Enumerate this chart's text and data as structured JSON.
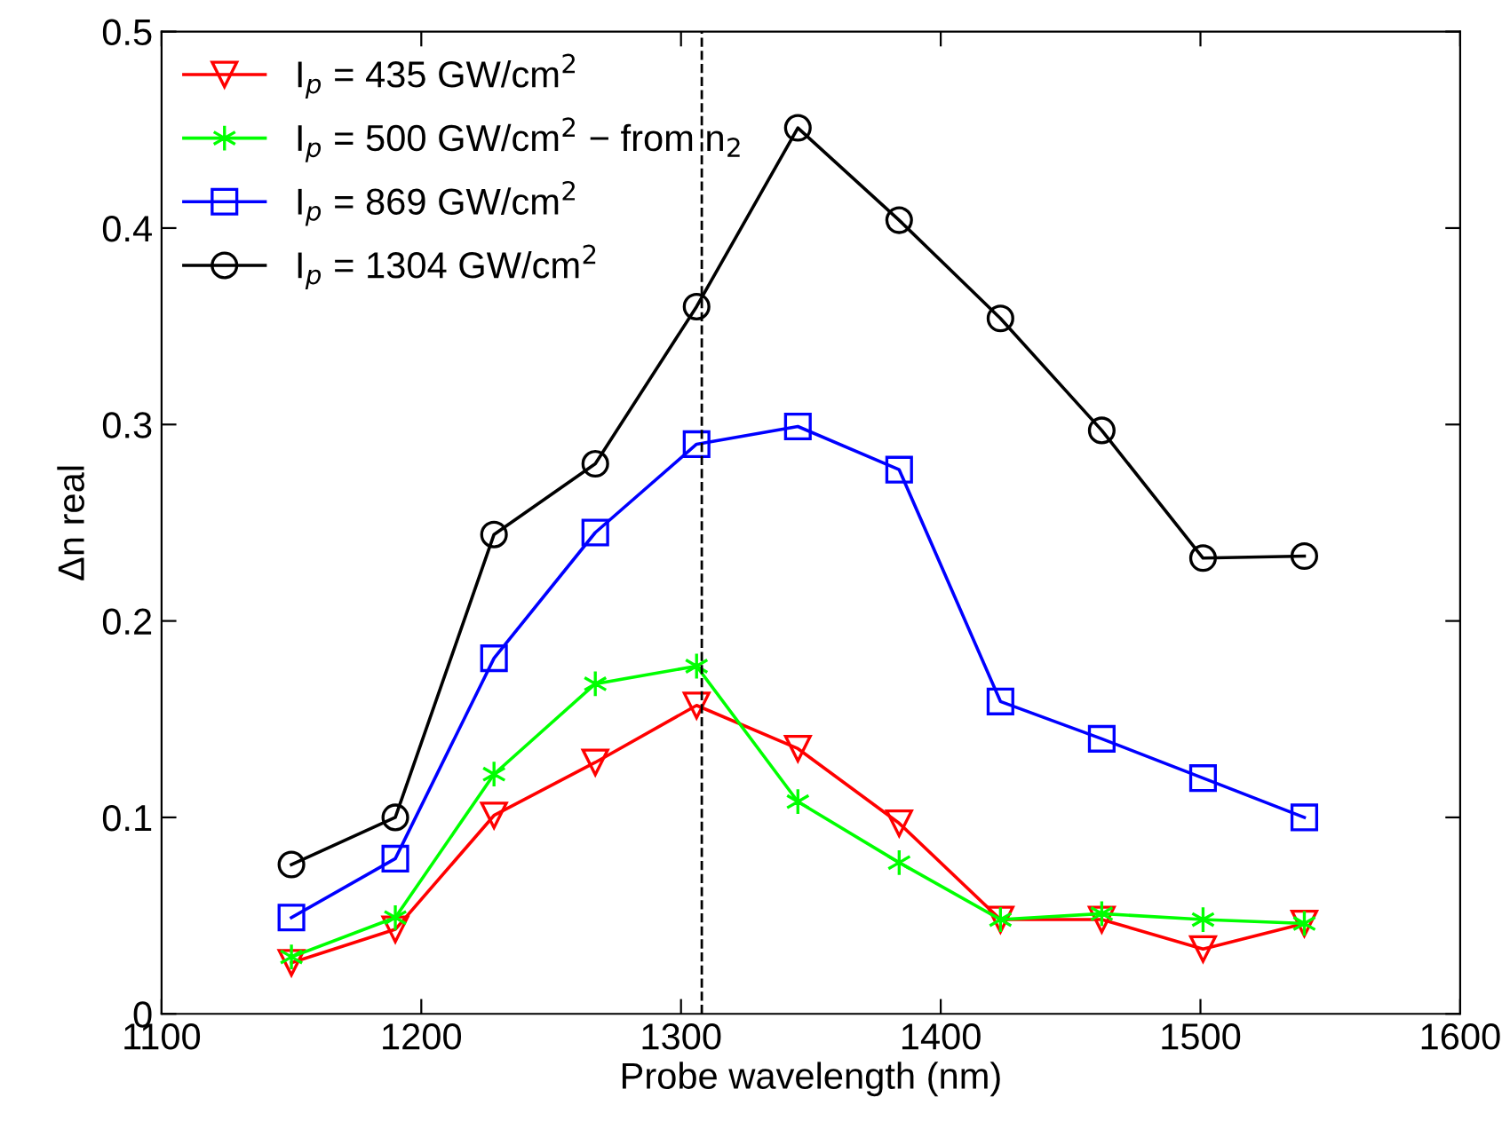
{
  "chart_data": {
    "type": "line",
    "xlabel": "Probe wavelength (nm)",
    "ylabel": "Δn real",
    "x": [
      1150,
      1190,
      1228,
      1267,
      1306,
      1345,
      1384,
      1423,
      1462,
      1501,
      1540
    ],
    "series": [
      {
        "name": "I$_{p}$ = 435 GW/cm$^{2}$",
        "color": "#ff0000",
        "marker": "triangle",
        "values": [
          0.026,
          0.043,
          0.101,
          0.128,
          0.157,
          0.135,
          0.097,
          0.048,
          0.048,
          0.033,
          0.046
        ]
      },
      {
        "name": "I$_{p}$ = 500 GW/cm$^{2}$ − from n$_{2}$",
        "color": "#00ff00",
        "marker": "cross",
        "values": [
          0.029,
          0.049,
          0.122,
          0.168,
          0.177,
          0.108,
          0.077,
          0.048,
          0.051,
          0.048,
          0.046
        ]
      },
      {
        "name": "I$_{p}$ = 869 GW/cm$^{2}$",
        "color": "#0000ff",
        "marker": "square",
        "values": [
          0.049,
          0.079,
          0.181,
          0.245,
          0.29,
          0.299,
          0.277,
          0.159,
          0.14,
          0.12,
          0.1
        ]
      },
      {
        "name": "I$_{p}$ = 1304 GW/cm$^{2}$",
        "color": "#000000",
        "marker": "circle",
        "values": [
          0.076,
          0.1,
          0.244,
          0.28,
          0.36,
          0.451,
          0.404,
          0.354,
          0.297,
          0.232,
          0.233
        ]
      }
    ],
    "ref_lines": [
      {
        "axis": "x",
        "value": 1308,
        "color": "#000000",
        "line_style": "dashed"
      }
    ],
    "xlim": [
      1100,
      1600
    ],
    "xticks": [
      1100,
      1200,
      1300,
      1400,
      1500,
      1600
    ],
    "ylim": [
      0,
      0.5
    ],
    "yticks": [
      0,
      0.1,
      0.2,
      0.3,
      0.4,
      0.5
    ],
    "grid": false,
    "legend": "top left"
  }
}
